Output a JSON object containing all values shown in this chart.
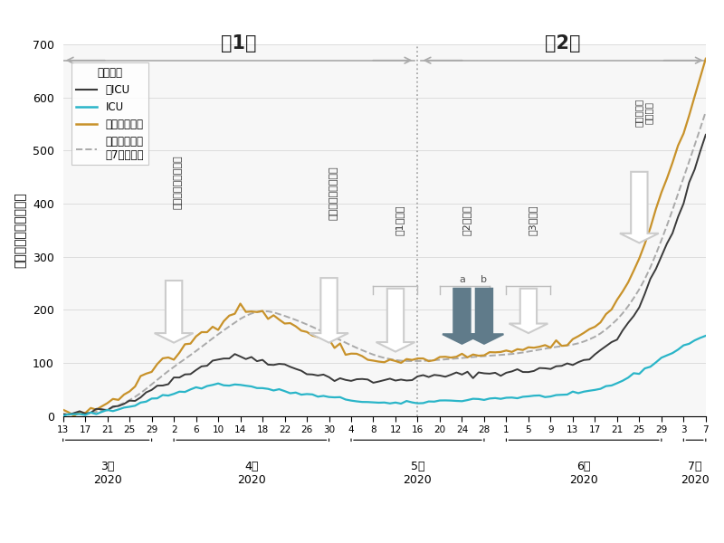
{
  "title_wave1": "第1波",
  "title_wave2": "第2波",
  "ylabel": "新型コロナ入院患者数",
  "legend_title": "病院統計",
  "legend_labels": [
    "非ICU",
    "ICU",
    "入院患者全体",
    "入院患者全体\nの7日間平均"
  ],
  "line_colors": [
    "#3a3a3a",
    "#2ab5c8",
    "#c8922a",
    "#aaaaaa"
  ],
  "ylim": [
    0,
    700
  ],
  "yticks": [
    0,
    100,
    200,
    300,
    400,
    500,
    600,
    700
  ],
  "background_color": "#ffffff",
  "annotation_color_light": "#cccccc",
  "annotation_color_dark": "#5a7a8a",
  "wave_arrow_color": "#aaaaaa",
  "grid_color": "#dddddd",
  "annot_text_color": "#333333",
  "mar_ticks": [
    13,
    17,
    21,
    25,
    29
  ],
  "apr_ticks": [
    2,
    6,
    10,
    14,
    18,
    22,
    26,
    30
  ],
  "may_ticks": [
    4,
    8,
    12,
    16,
    20,
    24,
    28
  ],
  "jun_ticks": [
    1,
    5,
    9,
    13,
    17,
    21,
    25,
    29
  ],
  "jul_ticks": [
    3,
    7
  ],
  "months": [
    "3月\n2020",
    "4月\n2020",
    "5月\n2020",
    "6月\n2020",
    "7月\n2020"
  ]
}
